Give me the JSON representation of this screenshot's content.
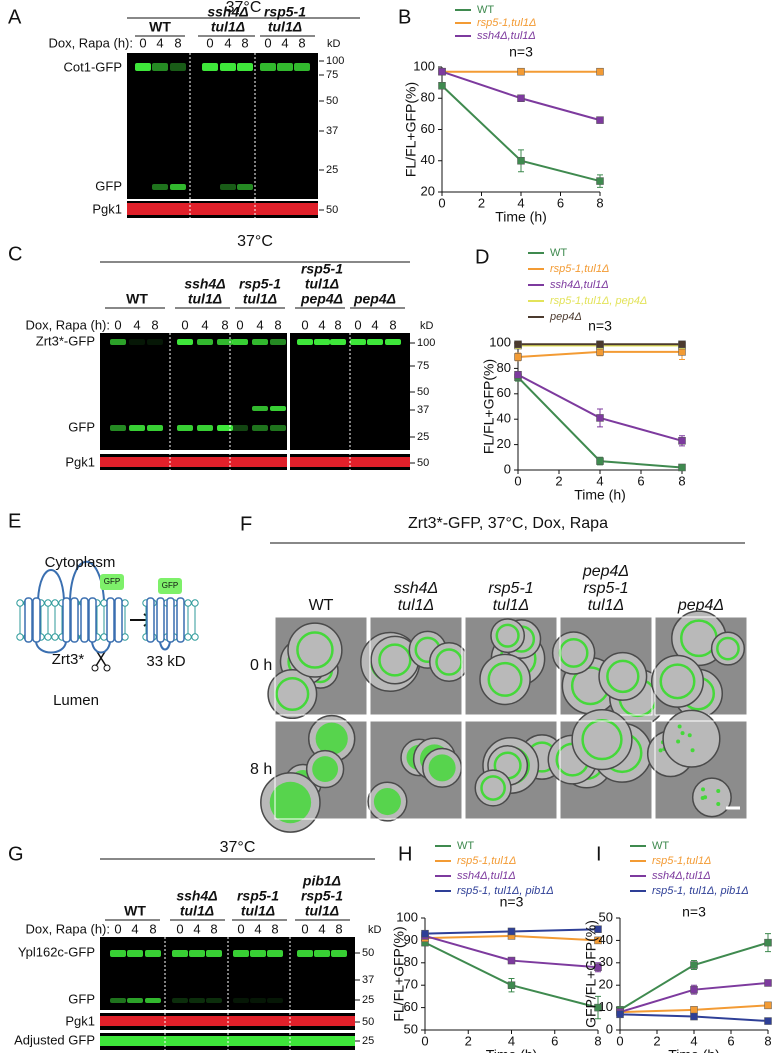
{
  "letters": [
    "A",
    "B",
    "C",
    "D",
    "E",
    "F",
    "G",
    "H",
    "I"
  ],
  "blots": [
    {
      "temperature": "37°C",
      "dox_label": "Dox, Rapa (h):",
      "lanes": [
        "0",
        "4",
        "8"
      ],
      "kd": "kD",
      "strains": [
        [
          "WT"
        ],
        [
          "ssh4Δ",
          "tul1Δ"
        ],
        [
          "rsp5-1",
          "tul1Δ"
        ]
      ],
      "bands": [
        "Cot1-GFP",
        "GFP",
        "Pgk1"
      ],
      "markers": [
        "100",
        "75",
        "50",
        "37",
        "25",
        "50"
      ]
    },
    {
      "temperature": "37°C",
      "dox_label": "Dox, Rapa (h):",
      "lanes": [
        "0",
        "4",
        "8"
      ],
      "kd": "kD",
      "strains": [
        [
          "WT"
        ],
        [
          "ssh4Δ",
          "tul1Δ"
        ],
        [
          "rsp5-1",
          "tul1Δ"
        ],
        [
          "rsp5-1",
          "tul1Δ",
          "pep4Δ"
        ],
        [
          "pep4Δ"
        ]
      ],
      "bands": [
        "Zrt3*-GFP",
        "GFP",
        "Pgk1"
      ],
      "markers": [
        "100",
        "75",
        "50",
        "37",
        "25",
        "50"
      ]
    },
    {
      "temperature": "37°C",
      "dox_label": "Dox, Rapa (h):",
      "lanes": [
        "0",
        "4",
        "8"
      ],
      "kd": "kD",
      "strains": [
        [
          "WT"
        ],
        [
          "ssh4Δ",
          "tul1Δ"
        ],
        [
          "rsp5-1",
          "tul1Δ"
        ],
        [
          "pib1Δ",
          "rsp5-1",
          "tul1Δ"
        ]
      ],
      "bands": [
        "Ypl162c-GFP",
        "GFP",
        "Pgk1",
        "Adjusted GFP"
      ],
      "markers": [
        "50",
        "37",
        "25",
        "50",
        "25"
      ]
    }
  ],
  "topology": {
    "cytoplasm": "Cytoplasm",
    "lumen": "Lumen",
    "protein": "Zrt3*",
    "gfp": "GFP",
    "fragment": "33 kD"
  },
  "microscopy": {
    "title": "Zrt3*-GFP, 37°C, Dox, Rapa",
    "columns": [
      [
        "WT"
      ],
      [
        "ssh4Δ",
        "tul1Δ"
      ],
      [
        "rsp5-1",
        "tul1Δ"
      ],
      [
        "pep4Δ",
        "rsp5-1",
        "tul1Δ"
      ],
      [
        "pep4Δ"
      ]
    ],
    "rows": [
      "0 h",
      "8 h"
    ]
  },
  "chart_data": [
    {
      "type": "line",
      "title": "n=3",
      "x_label": "Time (h)",
      "y_label": "FL/FL+GFP(%)",
      "x": [
        0,
        4,
        8
      ],
      "xlim": [
        0,
        8
      ],
      "xticks": [
        0,
        2,
        4,
        6,
        8
      ],
      "ylim": [
        20,
        100
      ],
      "yticks": [
        20,
        40,
        60,
        80,
        100
      ],
      "series": [
        {
          "name": "WT",
          "color": "#3f8a4f",
          "values": [
            88,
            40,
            27
          ],
          "errors": [
            1,
            7,
            4
          ]
        },
        {
          "name": "rsp5-1,tul1Δ",
          "color": "#f39b34",
          "values": [
            97,
            97,
            97
          ],
          "errors": [
            1,
            1,
            1
          ]
        },
        {
          "name": "ssh4Δ,tul1Δ",
          "color": "#7d3a9e",
          "values": [
            97,
            80,
            66
          ],
          "errors": [
            1,
            1,
            1
          ]
        }
      ]
    },
    {
      "type": "line",
      "title": "n=3",
      "x_label": "Time (h)",
      "y_label": "FL/FL+GFP(%)",
      "x": [
        0,
        4,
        8
      ],
      "xlim": [
        0,
        8
      ],
      "xticks": [
        0,
        2,
        4,
        6,
        8
      ],
      "ylim": [
        0,
        100
      ],
      "yticks": [
        0,
        20,
        40,
        60,
        80,
        100
      ],
      "series": [
        {
          "name": "WT",
          "color": "#3f8a4f",
          "values": [
            73,
            7,
            2
          ],
          "errors": [
            3,
            3,
            2
          ]
        },
        {
          "name": "rsp5-1,tul1Δ",
          "color": "#f39b34",
          "values": [
            89,
            93,
            93
          ],
          "errors": [
            3,
            3,
            6
          ]
        },
        {
          "name": "ssh4Δ,tul1Δ",
          "color": "#7d3a9e",
          "values": [
            75,
            41,
            23
          ],
          "errors": [
            2,
            7,
            4
          ]
        },
        {
          "name": "rsp5-1,tul1Δ, pep4Δ",
          "color": "#e3e35a",
          "values": [
            98,
            98,
            98
          ],
          "errors": [
            1,
            1,
            1
          ]
        },
        {
          "name": "pep4Δ",
          "color": "#4b3a2e",
          "values": [
            99,
            99,
            99
          ],
          "errors": [
            1,
            1,
            1
          ]
        }
      ]
    },
    {
      "type": "line",
      "title": "n=3",
      "x_label": "Time (h)",
      "y_label": "FL/FL+GFP(%)",
      "x": [
        0,
        4,
        8
      ],
      "xlim": [
        0,
        8
      ],
      "xticks": [
        0,
        2,
        4,
        6,
        8
      ],
      "ylim": [
        50,
        100
      ],
      "yticks": [
        50,
        60,
        70,
        80,
        90,
        100
      ],
      "series": [
        {
          "name": "WT",
          "color": "#3f8a4f",
          "values": [
            89,
            70,
            60
          ],
          "errors": [
            1,
            3,
            5
          ]
        },
        {
          "name": "rsp5-1,tul1Δ",
          "color": "#f39b34",
          "values": [
            91,
            92,
            90
          ],
          "errors": [
            1,
            1,
            1
          ]
        },
        {
          "name": "ssh4Δ,tul1Δ",
          "color": "#7d3a9e",
          "values": [
            92,
            81,
            78
          ],
          "errors": [
            1,
            1,
            2
          ]
        },
        {
          "name": "rsp5-1, tul1Δ, pib1Δ",
          "color": "#2e3f97",
          "values": [
            93,
            94,
            95
          ],
          "errors": [
            1,
            1,
            1
          ]
        }
      ]
    },
    {
      "type": "line",
      "title": "n=3",
      "x_label": "Time (h)",
      "y_label": "GFP/FL+GFP(%)",
      "x": [
        0,
        4,
        8
      ],
      "xlim": [
        0,
        8
      ],
      "xticks": [
        0,
        2,
        4,
        6,
        8
      ],
      "ylim": [
        0,
        50
      ],
      "yticks": [
        0,
        10,
        20,
        30,
        40,
        50
      ],
      "series": [
        {
          "name": "WT",
          "color": "#3f8a4f",
          "values": [
            9,
            29,
            39
          ],
          "errors": [
            1,
            2,
            4
          ]
        },
        {
          "name": "rsp5-1,tul1Δ",
          "color": "#f39b34",
          "values": [
            8,
            9,
            11
          ],
          "errors": [
            1,
            1,
            1
          ]
        },
        {
          "name": "ssh4Δ,tul1Δ",
          "color": "#7d3a9e",
          "values": [
            8,
            18,
            21
          ],
          "errors": [
            1,
            2,
            1
          ]
        },
        {
          "name": "rsp5-1, tul1Δ, pib1Δ",
          "color": "#2e3f97",
          "values": [
            7,
            6,
            4
          ],
          "errors": [
            1,
            1,
            1
          ]
        }
      ]
    }
  ]
}
